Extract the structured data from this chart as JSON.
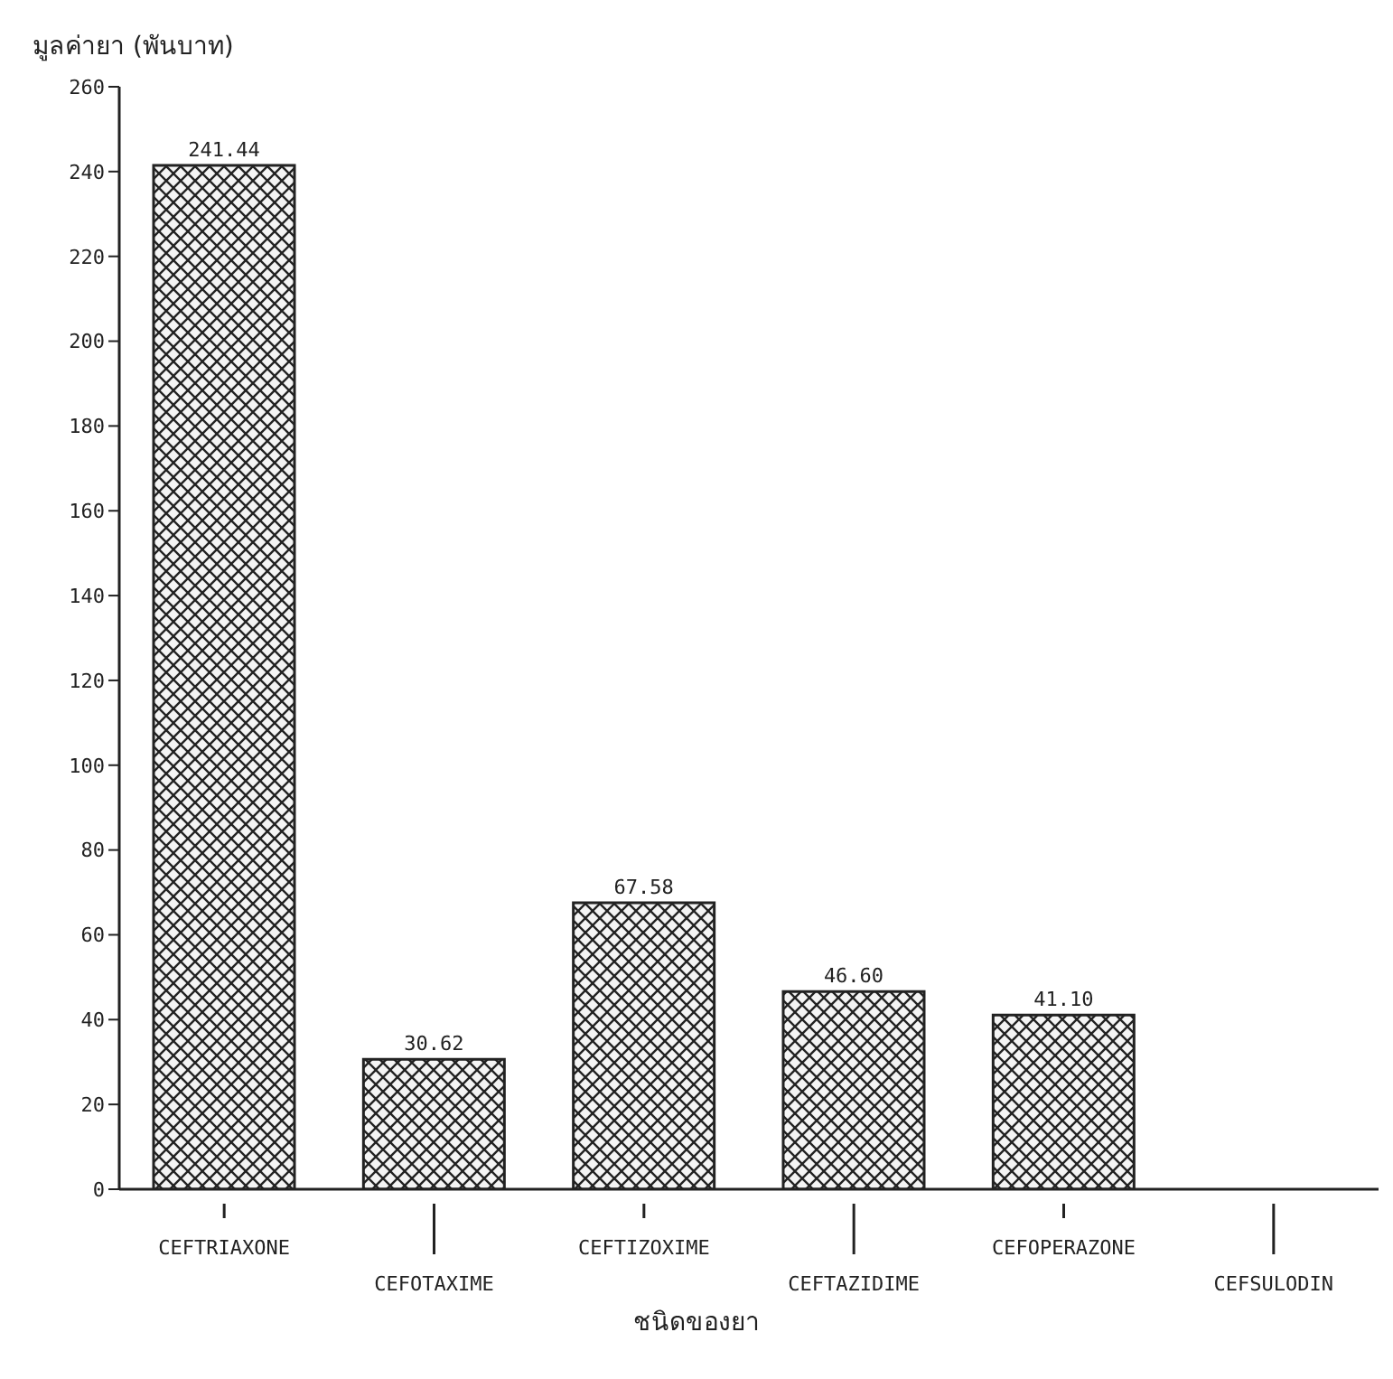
{
  "chart_data": {
    "type": "bar",
    "ylabel": "มูลค่ายา (พันบาท)",
    "xlabel": "ชนิดของยา",
    "categories": [
      "CEFTRIAXONE",
      "CEFOTAXIME",
      "CEFTIZOXIME",
      "CEFTAZIDIME",
      "CEFOPERAZONE",
      "CEFSULODIN"
    ],
    "values": [
      241.44,
      30.62,
      67.58,
      46.6,
      41.1,
      0
    ],
    "value_labels": [
      "241.44",
      "30.62",
      "67.58",
      "46.60",
      "41.10",
      null
    ],
    "color": "#222222",
    "ylim": [
      0,
      260
    ],
    "yticks": [
      0,
      20,
      40,
      60,
      80,
      100,
      120,
      140,
      160,
      180,
      200,
      220,
      240,
      260
    ],
    "grid": false
  }
}
